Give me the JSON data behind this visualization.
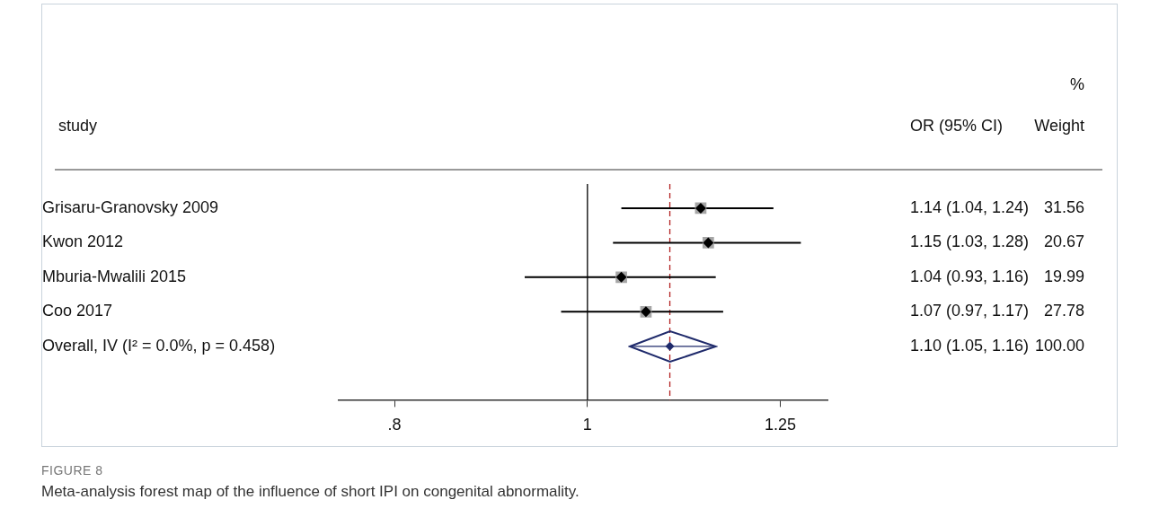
{
  "chart_data": {
    "type": "scatter",
    "orientation": "horizontal",
    "categories": [
      "Grisaru-Granovsky 2009",
      "Kwon 2012",
      "Mburia-Mwalili 2015",
      "Coo 2017",
      "Overall, IV (I² = 0.0%, p = 0.458)"
    ],
    "series": [
      {
        "marker": "square",
        "color": "#a6a6a6",
        "values": [
          1.14,
          1.15,
          1.04,
          1.07,
          null
        ],
        "errors": [
          [
            1.04,
            1.24
          ],
          [
            1.03,
            1.28
          ],
          [
            0.93,
            1.16
          ],
          [
            0.97,
            1.17
          ],
          null
        ],
        "value_labels": [
          "1.14 (1.04, 1.24)",
          "1.15 (1.03, 1.28)",
          "1.04 (0.93, 1.16)",
          "1.07 (0.97, 1.17)",
          null
        ]
      },
      {
        "marker": "diamond",
        "color": "#1f2a6b",
        "values": [
          null,
          null,
          null,
          null,
          1.1
        ],
        "errors": [
          null,
          null,
          null,
          null,
          [
            1.05,
            1.16
          ]
        ]
      }
    ],
    "log": "x",
    "xlim": [
      0.75,
      1.32
    ],
    "xticks": [
      {
        "value": 0.8,
        "label": ".8"
      },
      1,
      1.25
    ],
    "ref_lines": [
      {
        "axis": "x",
        "value": 1,
        "color": "#000000",
        "line_style": "solid"
      },
      {
        "axis": "x",
        "value": 1.1,
        "color": "#b22222",
        "line_style": "dashed"
      }
    ],
    "grid": false,
    "legend": false,
    "annotations": [
      "study",
      "OR (95% CI)",
      "%",
      "Weight",
      "31.56",
      "20.67",
      "19.99",
      "27.78",
      "100.00",
      "FIGURE 8",
      "Meta-analysis forest map of the influence of short IPI on congenital abnormality.",
      "1.10 (1.05, 1.16)"
    ]
  }
}
